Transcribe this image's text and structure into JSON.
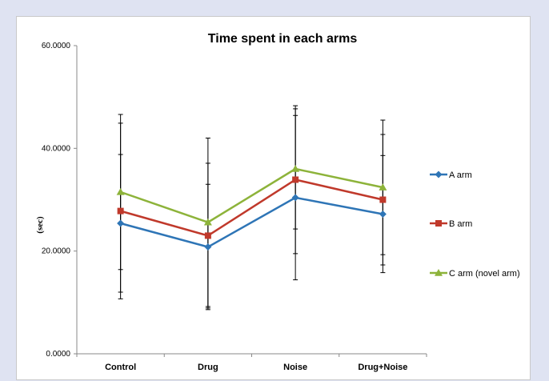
{
  "chart_data": {
    "type": "line",
    "title": "Time spent in each arms",
    "xlabel": "",
    "ylabel": "(sec)",
    "categories": [
      "Control",
      "Drug",
      "Noise",
      "Drug+Noise"
    ],
    "ylim": [
      0,
      60
    ],
    "yticks": [
      "0.0000",
      "20.0000",
      "40.0000",
      "60.0000"
    ],
    "ytick_values": [
      0,
      20,
      40,
      60
    ],
    "grid": false,
    "legend_position": "right",
    "series": [
      {
        "name": "A arm",
        "color": "#2e75b6",
        "marker": "diamond",
        "values": [
          25.4,
          20.8,
          30.4,
          27.2
        ],
        "error": [
          13.4,
          12.2,
          16.0,
          11.4
        ]
      },
      {
        "name": "B arm",
        "color": "#c0392b",
        "marker": "square",
        "values": [
          27.8,
          23.0,
          33.9,
          30.0
        ],
        "error": [
          17.1,
          14.1,
          14.4,
          12.7
        ]
      },
      {
        "name": "C arm (novel arm)",
        "color": "#8db33a",
        "marker": "triangle",
        "values": [
          31.5,
          25.6,
          36.0,
          32.4
        ],
        "error": [
          15.1,
          16.4,
          11.7,
          13.1
        ]
      }
    ]
  }
}
